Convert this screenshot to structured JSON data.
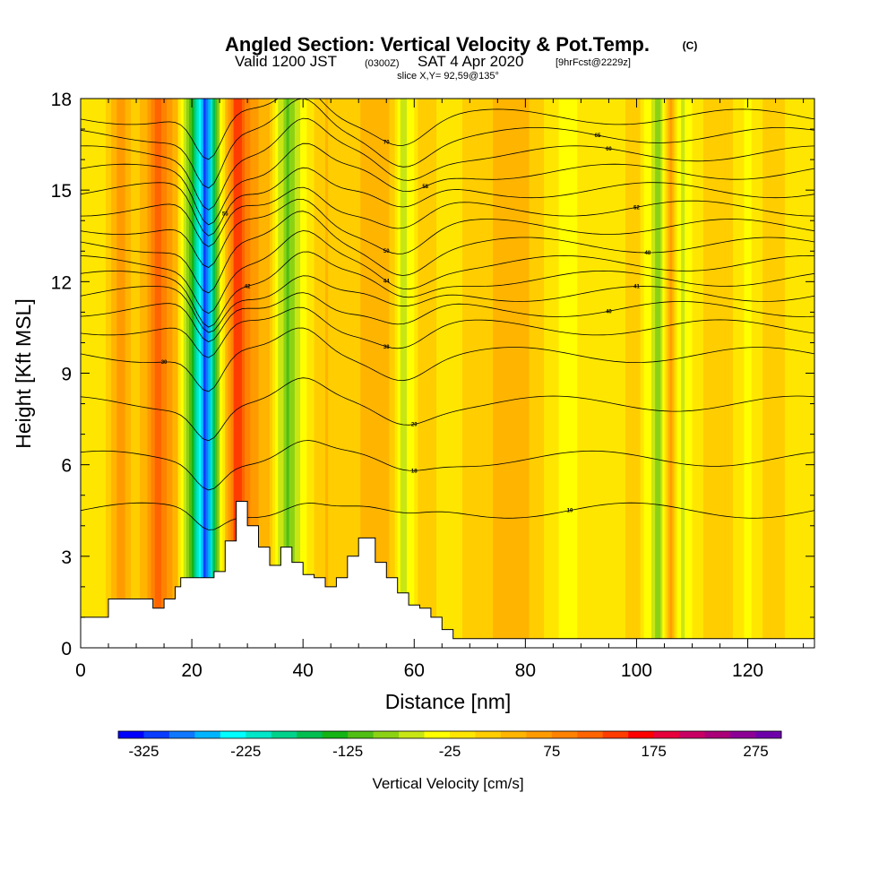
{
  "chart_data": {
    "type": "heatmap",
    "title": "Angled Section: Vertical Velocity & Pot.Temp.",
    "title_tag": "(C)",
    "subtitle": {
      "prefix": "Valid 1200 JST",
      "utc": "(0300Z)",
      "date": "SAT 4 Apr 2020",
      "forecast": "[9hrFcst@2229z]"
    },
    "slice_label": "slice X,Y= 92,59@135°",
    "xlabel": "Distance [nm]",
    "ylabel": "Height [Kft MSL]",
    "xlim": [
      0,
      132
    ],
    "ylim": [
      0,
      18
    ],
    "x_ticks": [
      "0",
      "20",
      "40",
      "60",
      "80",
      "100",
      "120"
    ],
    "y_ticks": [
      "0",
      "3",
      "6",
      "9",
      "12",
      "15",
      "18"
    ],
    "grid": false,
    "colorbar": {
      "label": "Vertical Velocity [cm/s]",
      "orientation": "horizontal",
      "ticks": [
        "-325",
        "-225",
        "-125",
        "-25",
        "75",
        "175",
        "275"
      ],
      "min": -350,
      "max": 300,
      "colors": [
        "#0000ff",
        "#0a3cff",
        "#0f78ff",
        "#00b4ff",
        "#00ffff",
        "#00e6c8",
        "#00d28c",
        "#00be50",
        "#14b414",
        "#50be14",
        "#8cd214",
        "#c8e614",
        "#ffff00",
        "#ffe600",
        "#ffcd00",
        "#ffb400",
        "#ff9b00",
        "#ff8200",
        "#ff6400",
        "#ff3c00",
        "#ff0000",
        "#e6003c",
        "#c80064",
        "#aa0078",
        "#8c0096",
        "#6e00aa"
      ]
    },
    "columns": [
      {
        "x": 0,
        "v": -20
      },
      {
        "x": 4,
        "v": -15
      },
      {
        "x": 7,
        "v": 70
      },
      {
        "x": 10,
        "v": 0
      },
      {
        "x": 14,
        "v": 110
      },
      {
        "x": 17,
        "v": 40
      },
      {
        "x": 20,
        "v": -130
      },
      {
        "x": 22.5,
        "v": -320
      },
      {
        "x": 25,
        "v": -60
      },
      {
        "x": 28,
        "v": 150
      },
      {
        "x": 31,
        "v": 60
      },
      {
        "x": 34,
        "v": 30
      },
      {
        "x": 37,
        "v": -110
      },
      {
        "x": 40,
        "v": -40
      },
      {
        "x": 44,
        "v": 30
      },
      {
        "x": 47,
        "v": 10
      },
      {
        "x": 51,
        "v": 30
      },
      {
        "x": 55,
        "v": 50
      },
      {
        "x": 58,
        "v": -60
      },
      {
        "x": 62,
        "v": 20
      },
      {
        "x": 66,
        "v": -20
      },
      {
        "x": 70,
        "v": 10
      },
      {
        "x": 75,
        "v": 30
      },
      {
        "x": 80,
        "v": 30
      },
      {
        "x": 84,
        "v": -10
      },
      {
        "x": 88,
        "v": -40
      },
      {
        "x": 92,
        "v": 0
      },
      {
        "x": 96,
        "v": -20
      },
      {
        "x": 100,
        "v": 20
      },
      {
        "x": 104,
        "v": -90
      },
      {
        "x": 106,
        "v": 60
      },
      {
        "x": 108,
        "v": -60
      },
      {
        "x": 112,
        "v": 0
      },
      {
        "x": 116,
        "v": 10
      },
      {
        "x": 120,
        "v": -30
      },
      {
        "x": 124,
        "v": 20
      },
      {
        "x": 128,
        "v": -10
      },
      {
        "x": 132,
        "v": 0
      }
    ],
    "terrain": [
      [
        0,
        1.0
      ],
      [
        5,
        1.0
      ],
      [
        5,
        1.6
      ],
      [
        9,
        1.6
      ],
      [
        9,
        1.6
      ],
      [
        13,
        1.6
      ],
      [
        13,
        1.3
      ],
      [
        15,
        1.3
      ],
      [
        15,
        1.6
      ],
      [
        17,
        1.6
      ],
      [
        17,
        2.0
      ],
      [
        18,
        2.0
      ],
      [
        18,
        2.3
      ],
      [
        20,
        2.3
      ],
      [
        24,
        2.3
      ],
      [
        24,
        2.5
      ],
      [
        26,
        2.5
      ],
      [
        26,
        3.5
      ],
      [
        28,
        3.5
      ],
      [
        28,
        4.8
      ],
      [
        30,
        4.8
      ],
      [
        30,
        4.0
      ],
      [
        32,
        4.0
      ],
      [
        32,
        3.3
      ],
      [
        34,
        3.3
      ],
      [
        34,
        2.7
      ],
      [
        36,
        2.7
      ],
      [
        36,
        3.3
      ],
      [
        38,
        3.3
      ],
      [
        38,
        2.8
      ],
      [
        40,
        2.8
      ],
      [
        40,
        2.4
      ],
      [
        42,
        2.4
      ],
      [
        42,
        2.3
      ],
      [
        44,
        2.3
      ],
      [
        44,
        2.0
      ],
      [
        46,
        2.0
      ],
      [
        46,
        2.3
      ],
      [
        48,
        2.3
      ],
      [
        48,
        3.0
      ],
      [
        50,
        3.0
      ],
      [
        50,
        3.6
      ],
      [
        53,
        3.6
      ],
      [
        53,
        2.8
      ],
      [
        55,
        2.8
      ],
      [
        55,
        2.3
      ],
      [
        57,
        2.3
      ],
      [
        57,
        1.8
      ],
      [
        59,
        1.8
      ],
      [
        59,
        1.4
      ],
      [
        61,
        1.4
      ],
      [
        61,
        1.3
      ],
      [
        63,
        1.3
      ],
      [
        63,
        1.0
      ],
      [
        65,
        1.0
      ],
      [
        65,
        0.6
      ],
      [
        67,
        0.6
      ],
      [
        67,
        0.3
      ],
      [
        70,
        0.3
      ],
      [
        132,
        0.3
      ]
    ],
    "theta_contours": [
      {
        "label": "10",
        "base": 4.5,
        "amp": 0.6,
        "label_x": 88
      },
      {
        "label": "18",
        "base": 6.2,
        "amp": 0.8,
        "label_x": 60
      },
      {
        "label": "20",
        "base": 8.0,
        "amp": 1.0,
        "label_x": 60
      },
      {
        "label": "30",
        "base": 9.6,
        "amp": 1.2,
        "label_x": 15
      },
      {
        "label": "38",
        "base": 10.5,
        "amp": 1.2,
        "label_x": 55
      },
      {
        "label": "40",
        "base": 11.1,
        "amp": 1.3,
        "label_x": 95
      },
      {
        "label": "41",
        "base": 11.6,
        "amp": 1.3,
        "label_x": 100
      },
      {
        "label": "42",
        "base": 12.1,
        "amp": 1.4,
        "label_x": 30
      },
      {
        "label": "44",
        "base": 12.6,
        "amp": 1.4,
        "label_x": 55
      },
      {
        "label": "48",
        "base": 13.2,
        "amp": 1.5,
        "label_x": 102
      },
      {
        "label": "50",
        "base": 13.8,
        "amp": 1.5,
        "label_x": 55
      },
      {
        "label": "52",
        "base": 14.4,
        "amp": 1.5,
        "label_x": 100
      },
      {
        "label": "55",
        "base": 15.0,
        "amp": 1.6,
        "label_x": 26
      },
      {
        "label": "58",
        "base": 15.6,
        "amp": 1.6,
        "label_x": 62
      },
      {
        "label": "60",
        "base": 16.2,
        "amp": 1.6,
        "label_x": 95
      },
      {
        "label": "65",
        "base": 16.8,
        "amp": 1.6,
        "label_x": 93
      },
      {
        "label": "70",
        "base": 17.4,
        "amp": 1.5,
        "label_x": 55
      }
    ]
  }
}
